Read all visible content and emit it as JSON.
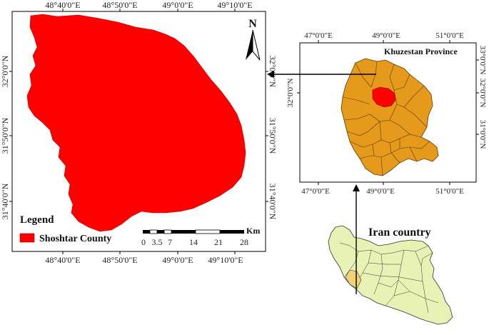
{
  "main_map": {
    "top_labels": [
      "48°40'0\"E",
      "48°50'0\"E",
      "49°0'0\"E",
      "49°10'0\"E"
    ],
    "bottom_labels": [
      "48°40'0\"E",
      "48°50'0\"E",
      "49°0'0\"E",
      "49°10'0\"E"
    ],
    "left_labels": [
      "32°0'0\"N",
      "31°50'0\"N",
      "31°40'0\"N"
    ],
    "right_labels": [
      "32°0'0\"N",
      "31°50'0\"N",
      "31°40'0\"N"
    ],
    "north_label": "N",
    "county_fill": "#ff0000",
    "legend": {
      "title": "Legend",
      "item_label": "Shoshtar County",
      "item_color": "#ff0000"
    },
    "scale_bar": {
      "unit": "Km",
      "ticks": [
        "0",
        "3.5",
        "7",
        "14",
        "21",
        "28"
      ]
    }
  },
  "province_map": {
    "title": "Khuzestan Province",
    "top_labels": [
      "47°0'0\"E",
      "49°0'0\"E",
      "51°0'0\"E"
    ],
    "bottom_labels": [
      "47°0'0\"E",
      "49°0'0\"E",
      "51°0'0\"E"
    ],
    "left_labels": [
      "32°0'0\"N"
    ],
    "right_labels": [
      "33°0'0\"N",
      "32°0'0\"N",
      "31°0'0\"N"
    ],
    "province_fill": "#e59a1c",
    "highlight_fill": "#ff0000"
  },
  "country_map": {
    "title": "Iran country",
    "fill": "#e8f2b4"
  }
}
